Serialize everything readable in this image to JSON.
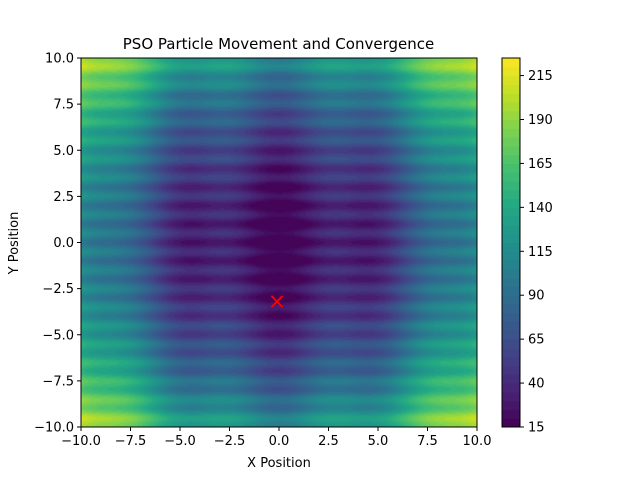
{
  "chart_data": {
    "type": "heatmap",
    "title": "PSO Particle Movement and Convergence",
    "xlabel": "X Position",
    "ylabel": "Y Position",
    "xlim": [
      -10,
      10
    ],
    "ylim": [
      -10,
      10
    ],
    "x_ticks": [
      -10.0,
      -7.5,
      -5.0,
      -2.5,
      0.0,
      2.5,
      5.0,
      7.5,
      10.0
    ],
    "y_ticks": [
      -10.0,
      -7.5,
      -5.0,
      -2.5,
      0.0,
      2.5,
      5.0,
      7.5,
      10.0
    ],
    "x_tick_labels": [
      "−10.0",
      "−7.5",
      "−5.0",
      "−2.5",
      "0.0",
      "2.5",
      "5.0",
      "7.5",
      "10.0"
    ],
    "y_tick_labels": [
      "−10.0",
      "−7.5",
      "−5.0",
      "−2.5",
      "0.0",
      "2.5",
      "5.0",
      "7.5",
      "10.0"
    ],
    "colorbar": {
      "range": [
        15,
        225
      ],
      "ticks": [
        15,
        40,
        65,
        90,
        115,
        140,
        165,
        190,
        215
      ],
      "tick_labels": [
        "15",
        "40",
        "65",
        "90",
        "115",
        "140",
        "165",
        "190",
        "215"
      ],
      "colormap": "viridis",
      "levels": 42
    },
    "surface": {
      "description_function": "x^2 + y^2 + 10*(2 - cos(2*pi*x/5) - cos(2*pi*y))",
      "grid_on": false
    },
    "markers": [
      {
        "label": "×",
        "x": -0.1,
        "y": -3.2,
        "color": "#ff0000"
      }
    ],
    "particle_points": [
      {
        "x": -0.1,
        "y": -3.2,
        "color": "#0000ff"
      }
    ]
  }
}
